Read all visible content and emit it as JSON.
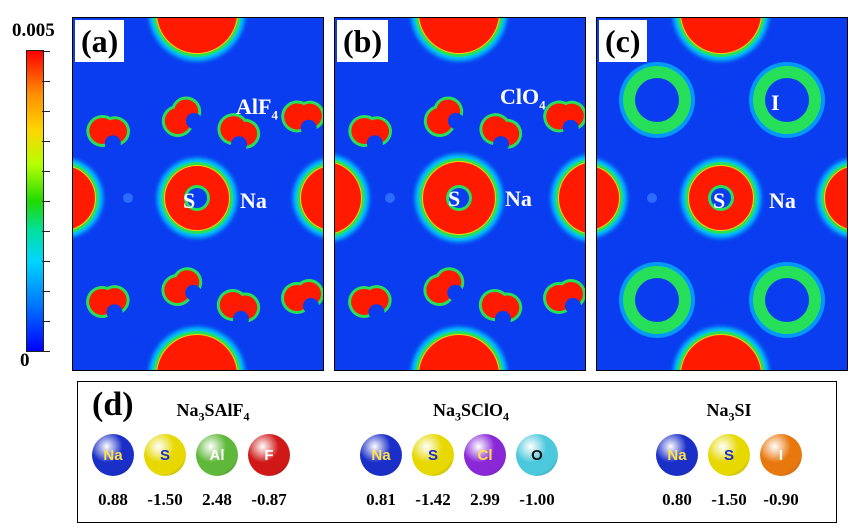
{
  "colorbar": {
    "max_label": "0.005",
    "min_label": "0"
  },
  "panels": [
    {
      "id": "a",
      "label": "(a)",
      "anion_text": "AlF",
      "anion_sub": "4",
      "s_label": "S",
      "na_label": "Na"
    },
    {
      "id": "b",
      "label": "(b)",
      "anion_text": "ClO",
      "anion_sub": "4",
      "s_label": "S",
      "na_label": "Na"
    },
    {
      "id": "c",
      "label": "(c)",
      "anion_text": "I",
      "anion_sub": "",
      "s_label": "S",
      "na_label": "Na"
    }
  ],
  "charges": {
    "label": "(d)",
    "formulas": [
      {
        "pre": "Na",
        "sub1": "3",
        "mid": "SAlF",
        "sub2": "4",
        "atoms": [
          {
            "symbol": "Na",
            "value": "0.88",
            "color": "#1a2ec8",
            "text_color": "#ffe14a"
          },
          {
            "symbol": "S",
            "value": "-1.50",
            "color": "#e6d800",
            "text_color": "#1a2ec8"
          },
          {
            "symbol": "Al",
            "value": "2.48",
            "color": "#5fb83a",
            "text_color": "#ffffff"
          },
          {
            "symbol": "F",
            "value": "-0.87",
            "color": "#d01818",
            "text_color": "#ffffff"
          }
        ]
      },
      {
        "pre": "Na",
        "sub1": "3",
        "mid": "SClO",
        "sub2": "4",
        "atoms": [
          {
            "symbol": "Na",
            "value": "0.81",
            "color": "#1a2ec8",
            "text_color": "#ffe14a"
          },
          {
            "symbol": "S",
            "value": "-1.42",
            "color": "#e6d800",
            "text_color": "#1a2ec8"
          },
          {
            "symbol": "Cl",
            "value": "2.99",
            "color": "#8a28d8",
            "text_color": "#ffe14a"
          },
          {
            "symbol": "O",
            "value": "-1.00",
            "color": "#4cc8dc",
            "text_color": "#111111"
          }
        ]
      },
      {
        "pre": "Na",
        "sub1": "3",
        "mid": "SI",
        "sub2": "",
        "atoms": [
          {
            "symbol": "Na",
            "value": "0.80",
            "color": "#1a2ec8",
            "text_color": "#ffe14a"
          },
          {
            "symbol": "S",
            "value": "-1.50",
            "color": "#e6d800",
            "text_color": "#1a2ec8"
          },
          {
            "symbol": "I",
            "value": "-0.90",
            "color": "#e8780e",
            "text_color": "#ffffff"
          }
        ]
      }
    ]
  }
}
